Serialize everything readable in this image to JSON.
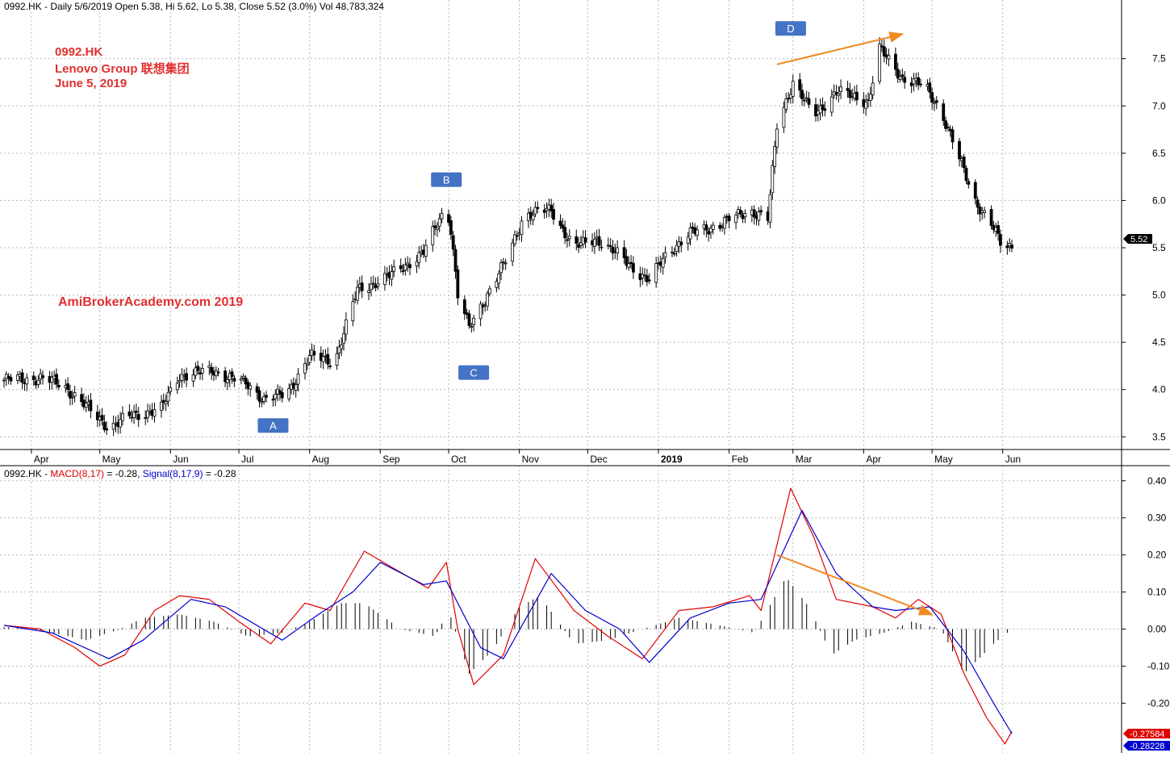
{
  "header": {
    "price_title": "0992.HK - Daily 5/6/2019 Open 5.38, Hi 5.62, Lo 5.38, Close 5.52 (3.0%) Vol 48,783,324",
    "macd_title_prefix": "0992.HK - ",
    "macd_name": "MACD(8,17)",
    "macd_value": " = -0.28, ",
    "signal_name": "Signal(8,17,9)",
    "signal_value": " = -0.28"
  },
  "annotations": {
    "ticker": "0992.HK",
    "company": "Lenovo Group 联想集团",
    "date": "June 5, 2019",
    "watermark": "AmiBrokerAcademy.com  2019",
    "labels": [
      {
        "id": "A",
        "text": "A"
      },
      {
        "id": "B",
        "text": "B"
      },
      {
        "id": "C",
        "text": "C"
      },
      {
        "id": "D",
        "text": "D"
      }
    ]
  },
  "colors": {
    "macd": "#e00000",
    "signal": "#0000cc",
    "trend_arrow": "#f08a24",
    "label_box": "#4472c4",
    "text_red": "#e03030"
  },
  "chart_data": [
    {
      "type": "candlestick",
      "title": "0992.HK - Daily 5/6/2019 Open 5.38, Hi 5.62, Lo 5.38, Close 5.52 (3.0%) Vol 48,783,324",
      "x_tick_labels": [
        "Apr",
        "May",
        "Jun",
        "Jul",
        "Aug",
        "Sep",
        "Oct",
        "Nov",
        "Dec",
        "2019",
        "Feb",
        "Mar",
        "Apr",
        "May",
        "Jun"
      ],
      "y_ticks": [
        "3.5",
        "4.0",
        "4.5",
        "5.0",
        "5.5",
        "6.0",
        "6.5",
        "7.0",
        "7.5"
      ],
      "ylim": [
        3.4,
        7.95
      ],
      "last_close_label": "5.52",
      "close_path": [
        [
          "2018-03-20",
          4.1
        ],
        [
          "2018-04-05",
          4.12
        ],
        [
          "2018-04-15",
          4.05
        ],
        [
          "2018-04-28",
          3.75
        ],
        [
          "2018-05-05",
          3.6
        ],
        [
          "2018-05-15",
          3.72
        ],
        [
          "2018-05-28",
          3.8
        ],
        [
          "2018-06-05",
          4.15
        ],
        [
          "2018-06-20",
          4.2
        ],
        [
          "2018-07-05",
          4.05
        ],
        [
          "2018-07-12",
          3.9
        ],
        [
          "2018-07-22",
          3.95
        ],
        [
          "2018-08-01",
          4.35
        ],
        [
          "2018-08-12",
          4.3
        ],
        [
          "2018-08-22",
          5.05
        ],
        [
          "2018-09-05",
          5.2
        ],
        [
          "2018-09-20",
          5.45
        ],
        [
          "2018-09-30",
          5.95
        ],
        [
          "2018-10-02",
          5.7
        ],
        [
          "2018-10-05",
          5.0
        ],
        [
          "2018-10-10",
          4.65
        ],
        [
          "2018-10-20",
          5.1
        ],
        [
          "2018-10-27",
          5.4
        ],
        [
          "2018-11-03",
          5.85
        ],
        [
          "2018-11-15",
          5.9
        ],
        [
          "2018-11-25",
          5.5
        ],
        [
          "2018-12-05",
          5.6
        ],
        [
          "2018-12-18",
          5.35
        ],
        [
          "2018-12-28",
          5.15
        ],
        [
          "2019-01-05",
          5.45
        ],
        [
          "2019-01-15",
          5.65
        ],
        [
          "2019-01-28",
          5.75
        ],
        [
          "2019-02-10",
          5.9
        ],
        [
          "2019-02-18",
          5.8
        ],
        [
          "2019-02-22",
          6.8
        ],
        [
          "2019-03-01",
          7.25
        ],
        [
          "2019-03-10",
          6.9
        ],
        [
          "2019-03-20",
          7.15
        ],
        [
          "2019-04-03",
          7.05
        ],
        [
          "2019-04-08",
          7.6
        ],
        [
          "2019-04-18",
          7.3
        ],
        [
          "2019-04-28",
          7.2
        ],
        [
          "2019-05-05",
          6.95
        ],
        [
          "2019-05-12",
          6.5
        ],
        [
          "2019-05-20",
          6.0
        ],
        [
          "2019-05-27",
          5.75
        ],
        [
          "2019-06-01",
          5.5
        ],
        [
          "2019-06-05",
          5.52
        ]
      ],
      "annotations": [
        {
          "text": "A",
          "date": "2018-07-16",
          "value": 3.62
        },
        {
          "text": "B",
          "date": "2018-09-30",
          "value": 6.22
        },
        {
          "text": "C",
          "date": "2018-10-12",
          "value": 4.18
        },
        {
          "text": "D",
          "date": "2019-02-28",
          "value": 7.82
        }
      ],
      "trend_lines": [
        {
          "from": [
            "2019-02-22",
            7.44
          ],
          "to": [
            "2019-04-18",
            7.76
          ],
          "color": "#f08a24"
        }
      ]
    },
    {
      "type": "line",
      "title": "0992.HK - MACD(8,17) = -0.28, Signal(8,17,9) = -0.28",
      "y_ticks": [
        "-0.20",
        "-0.10",
        "0.00",
        "0.10",
        "0.20",
        "0.30",
        "0.40"
      ],
      "ylim": [
        -0.33,
        0.43
      ],
      "macd_label": "-0.27584",
      "signal_label": "-0.28228",
      "series": [
        {
          "name": "MACD(8,17)",
          "color": "#e00000",
          "points": [
            [
              "2018-03-20",
              0.01
            ],
            [
              "2018-04-05",
              0.0
            ],
            [
              "2018-04-20",
              -0.05
            ],
            [
              "2018-05-01",
              -0.1
            ],
            [
              "2018-05-12",
              -0.07
            ],
            [
              "2018-05-25",
              0.05
            ],
            [
              "2018-06-05",
              0.09
            ],
            [
              "2018-06-18",
              0.08
            ],
            [
              "2018-07-01",
              0.02
            ],
            [
              "2018-07-15",
              -0.04
            ],
            [
              "2018-07-30",
              0.07
            ],
            [
              "2018-08-10",
              0.05
            ],
            [
              "2018-08-25",
              0.21
            ],
            [
              "2018-09-08",
              0.16
            ],
            [
              "2018-09-22",
              0.11
            ],
            [
              "2018-09-30",
              0.18
            ],
            [
              "2018-10-05",
              0.0
            ],
            [
              "2018-10-12",
              -0.15
            ],
            [
              "2018-10-25",
              -0.07
            ],
            [
              "2018-11-08",
              0.19
            ],
            [
              "2018-11-25",
              0.05
            ],
            [
              "2018-12-10",
              -0.02
            ],
            [
              "2018-12-25",
              -0.08
            ],
            [
              "2019-01-10",
              0.05
            ],
            [
              "2019-01-25",
              0.06
            ],
            [
              "2019-02-10",
              0.09
            ],
            [
              "2019-02-15",
              0.05
            ],
            [
              "2019-02-28",
              0.38
            ],
            [
              "2019-03-10",
              0.25
            ],
            [
              "2019-03-20",
              0.08
            ],
            [
              "2019-04-05",
              0.06
            ],
            [
              "2019-04-15",
              0.03
            ],
            [
              "2019-04-25",
              0.08
            ],
            [
              "2019-05-05",
              0.04
            ],
            [
              "2019-05-15",
              -0.12
            ],
            [
              "2019-05-25",
              -0.24
            ],
            [
              "2019-06-02",
              -0.31
            ],
            [
              "2019-06-05",
              -0.276
            ]
          ]
        },
        {
          "name": "Signal(8,17,9)",
          "color": "#0000cc",
          "points": [
            [
              "2018-03-20",
              0.01
            ],
            [
              "2018-04-10",
              -0.01
            ],
            [
              "2018-05-05",
              -0.08
            ],
            [
              "2018-05-20",
              -0.03
            ],
            [
              "2018-06-10",
              0.08
            ],
            [
              "2018-06-25",
              0.06
            ],
            [
              "2018-07-20",
              -0.03
            ],
            [
              "2018-08-05",
              0.04
            ],
            [
              "2018-08-20",
              0.1
            ],
            [
              "2018-09-01",
              0.18
            ],
            [
              "2018-09-20",
              0.12
            ],
            [
              "2018-09-30",
              0.13
            ],
            [
              "2018-10-15",
              -0.05
            ],
            [
              "2018-10-25",
              -0.08
            ],
            [
              "2018-11-15",
              0.15
            ],
            [
              "2018-11-30",
              0.05
            ],
            [
              "2018-12-15",
              0.0
            ],
            [
              "2018-12-28",
              -0.09
            ],
            [
              "2019-01-15",
              0.03
            ],
            [
              "2019-02-01",
              0.07
            ],
            [
              "2019-02-15",
              0.08
            ],
            [
              "2019-03-05",
              0.32
            ],
            [
              "2019-03-20",
              0.15
            ],
            [
              "2019-04-05",
              0.06
            ],
            [
              "2019-04-15",
              0.05
            ],
            [
              "2019-04-30",
              0.06
            ],
            [
              "2019-05-15",
              -0.06
            ],
            [
              "2019-05-28",
              -0.2
            ],
            [
              "2019-06-05",
              -0.282
            ]
          ]
        }
      ],
      "histogram": [
        [
          "2018-03-25",
          0.005
        ],
        [
          "2018-04-10",
          -0.01
        ],
        [
          "2018-04-25",
          -0.03
        ],
        [
          "2018-05-10",
          0.0
        ],
        [
          "2018-05-20",
          0.03
        ],
        [
          "2018-06-05",
          0.04
        ],
        [
          "2018-06-20",
          0.02
        ],
        [
          "2018-07-05",
          -0.02
        ],
        [
          "2018-07-20",
          -0.01
        ],
        [
          "2018-08-01",
          0.02
        ],
        [
          "2018-08-15",
          0.07
        ],
        [
          "2018-08-25",
          0.07
        ],
        [
          "2018-09-10",
          0.0
        ],
        [
          "2018-09-25",
          -0.02
        ],
        [
          "2018-10-01",
          0.05
        ],
        [
          "2018-10-10",
          -0.12
        ],
        [
          "2018-10-20",
          -0.06
        ],
        [
          "2018-11-01",
          0.06
        ],
        [
          "2018-11-10",
          0.09
        ],
        [
          "2018-11-25",
          -0.04
        ],
        [
          "2018-12-10",
          -0.03
        ],
        [
          "2018-12-25",
          0.0
        ],
        [
          "2019-01-10",
          0.03
        ],
        [
          "2019-01-28",
          0.01
        ],
        [
          "2019-02-12",
          -0.01
        ],
        [
          "2019-02-26",
          0.14
        ],
        [
          "2019-03-08",
          0.06
        ],
        [
          "2019-03-18",
          -0.07
        ],
        [
          "2019-03-28",
          -0.03
        ],
        [
          "2019-04-10",
          -0.01
        ],
        [
          "2019-04-22",
          0.02
        ],
        [
          "2019-05-05",
          0.0
        ],
        [
          "2019-05-15",
          -0.12
        ],
        [
          "2019-05-28",
          -0.04
        ],
        [
          "2019-06-05",
          0.0
        ]
      ]
    }
  ]
}
